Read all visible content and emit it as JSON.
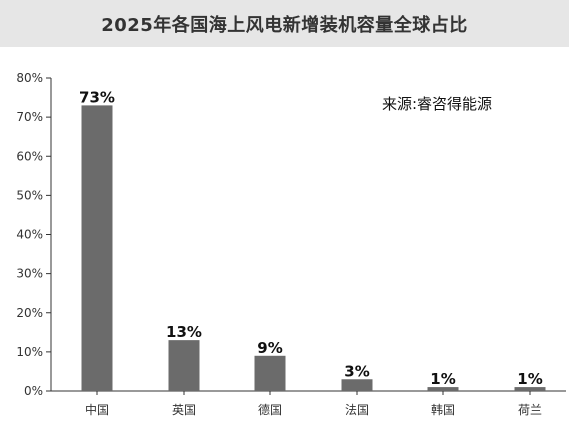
{
  "chart_data": {
    "type": "bar",
    "title": "2025年各国海上风电新增装机容量全球占比",
    "source": "来源:睿咨得能源",
    "categories": [
      "中国",
      "英国",
      "德国",
      "法国",
      "韩国",
      "荷兰"
    ],
    "values": [
      73,
      13,
      9,
      3,
      1,
      1
    ],
    "data_labels": [
      "73%",
      "13%",
      "9%",
      "3%",
      "1%",
      "1%"
    ],
    "yticks": [
      "0%",
      "10%",
      "20%",
      "30%",
      "40%",
      "50%",
      "60%",
      "70%",
      "80%"
    ],
    "ylim": [
      0,
      80
    ],
    "grid": false,
    "legend": false,
    "bar_color": "#6b6b6b",
    "title_background": "#e6e6e6"
  }
}
